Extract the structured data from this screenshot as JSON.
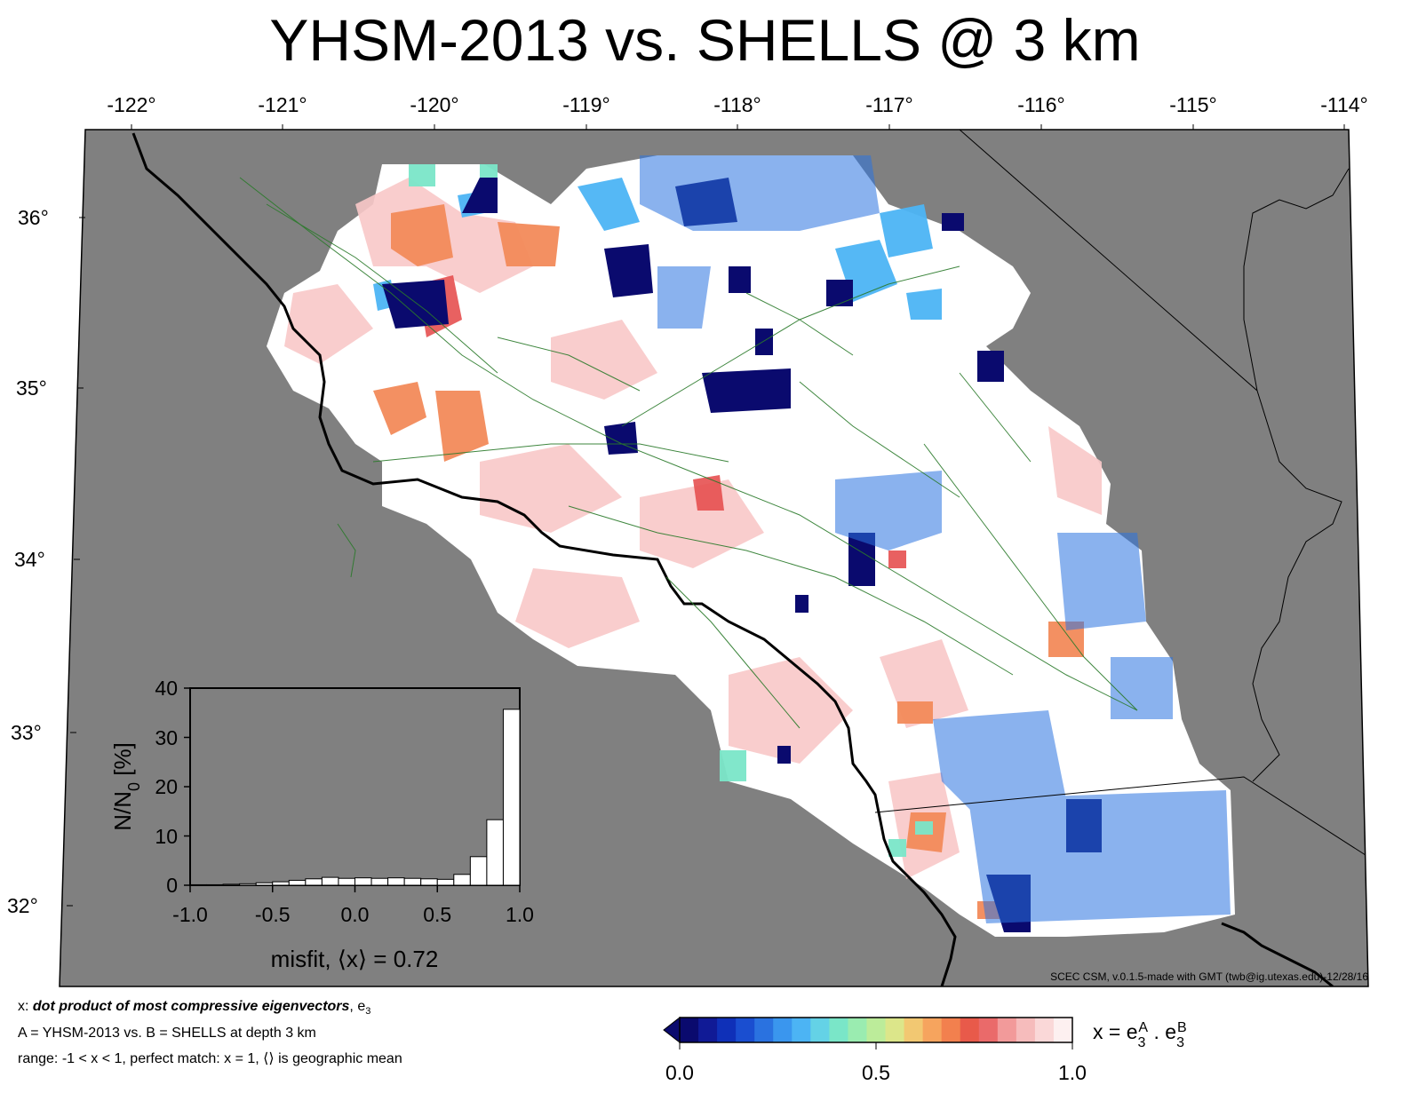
{
  "title": "YHSM-2013 vs. SHELLS @ 3 km",
  "map": {
    "lon_ticks": [
      "-122°",
      "-121°",
      "-120°",
      "-119°",
      "-118°",
      "-117°",
      "-116°",
      "-115°",
      "-114°"
    ],
    "lat_ticks": [
      "36°",
      "35°",
      "34°",
      "33°",
      "32°"
    ],
    "lon_range": [
      -122.1,
      -113.9
    ],
    "lat_range": [
      31.5,
      36.5
    ],
    "background_color": "#808080",
    "credit": "SCEC CSM, v.0.1.5-made with GMT (twb@ig.utexas.edu)-12/28/16"
  },
  "inset": {
    "ylabel": "N/N",
    "ylabel_sub": "0",
    "ylabel_unit": " [%]",
    "xlabel": "misfit, ⟨x⟩ = 0.72",
    "x_ticks": [
      "-1.0",
      "-0.5",
      "0.0",
      "0.5",
      "1.0"
    ],
    "y_ticks": [
      "0",
      "10",
      "20",
      "30",
      "40"
    ]
  },
  "chart_data": {
    "type": "bar",
    "title": "",
    "xlabel": "misfit, ⟨x⟩ = 0.72",
    "ylabel": "N/N0 [%]",
    "xlim": [
      -1.0,
      1.0
    ],
    "ylim": [
      0,
      40
    ],
    "bin_width": 0.1,
    "bin_centers": [
      -0.95,
      -0.85,
      -0.75,
      -0.65,
      -0.55,
      -0.45,
      -0.35,
      -0.25,
      -0.15,
      -0.05,
      0.05,
      0.15,
      0.25,
      0.35,
      0.45,
      0.55,
      0.65,
      0.75,
      0.85,
      0.95
    ],
    "values": [
      0.1,
      0.1,
      0.2,
      0.3,
      0.5,
      0.7,
      1.0,
      1.3,
      1.6,
      1.4,
      1.5,
      1.4,
      1.5,
      1.4,
      1.3,
      1.2,
      2.2,
      5.8,
      13.3,
      35.7
    ],
    "grid": false,
    "bar_color": "#ffffff"
  },
  "colorbar": {
    "min_label": "0.0",
    "mid_label": "0.5",
    "max_label": "1.0",
    "formula_prefix": "x = e",
    "formula_sub1": "3",
    "formula_sup1": "A",
    "formula_mid": " . e",
    "formula_sub2": "3",
    "formula_sup2": "B",
    "colors": [
      "#0a0a6e",
      "#101a96",
      "#0f30b8",
      "#1a4ed0",
      "#2a72e0",
      "#3a96ee",
      "#4cb4f4",
      "#64d2e6",
      "#7ae6c8",
      "#9aecb0",
      "#bcec9a",
      "#dce68a",
      "#f2c872",
      "#f6a45e",
      "#f2804e",
      "#e85a4a",
      "#ea6a6a",
      "#f29a9a",
      "#f6bcbc",
      "#fad8d8",
      "#fdf0f0"
    ]
  },
  "footnote": {
    "line1_prefix": "x: ",
    "line1_bold": "dot product of most compressive eigenvectors",
    "line1_suffix": ", e",
    "line1_sub": "3",
    "line2": "A = YHSM-2013 vs.  B = SHELLS at depth 3 km",
    "line3": "range: -1 < x < 1, perfect match: x = 1, ⟨⟩ is geographic mean"
  }
}
